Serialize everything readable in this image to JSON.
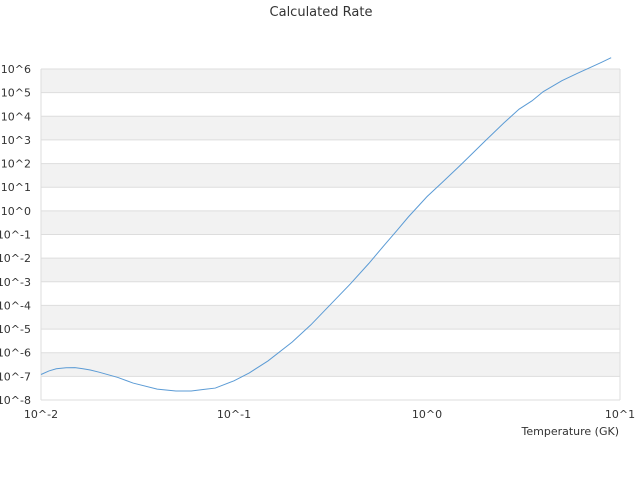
{
  "chart_data": {
    "type": "line",
    "title": "Calculated Rate",
    "xlabel": "Temperature (GK)",
    "ylabel": "",
    "x_scale": "log",
    "y_scale": "log",
    "xlim": [
      0.01,
      10
    ],
    "ylim": [
      1e-08,
      1000000.0
    ],
    "x_ticks": [
      "10^-2",
      "10^-1",
      "10^0",
      "10^1"
    ],
    "y_ticks": [
      "10^-8",
      "10^-7",
      "10^-6",
      "10^-5",
      "10^-4",
      "10^-3",
      "10^-2",
      "10^-1",
      "10^0",
      "10^1",
      "10^2",
      "10^3",
      "10^4",
      "10^5",
      "10^6"
    ],
    "grid": "alternating horizontal bands",
    "legend": "none",
    "series": [
      {
        "color": "#5b9bd5",
        "x": [
          0.01,
          0.011,
          0.012,
          0.0135,
          0.015,
          0.0165,
          0.018,
          0.02,
          0.025,
          0.03,
          0.04,
          0.05,
          0.06,
          0.07,
          0.08,
          0.1,
          0.12,
          0.15,
          0.2,
          0.25,
          0.3,
          0.4,
          0.5,
          0.6,
          0.7,
          0.8,
          1.0,
          1.2,
          1.5,
          2.0,
          2.5,
          3.0,
          3.5,
          4.0,
          5.0,
          6.0,
          7.0,
          8.0,
          9.0
        ],
        "y": [
          1.2e-07,
          1.7e-07,
          2.1e-07,
          2.3e-07,
          2.35e-07,
          2.1e-07,
          1.85e-07,
          1.5e-07,
          9e-08,
          5.2e-08,
          2.9e-08,
          2.4e-08,
          2.4e-08,
          2.8e-08,
          3.2e-08,
          6.5e-08,
          1.4e-07,
          4.5e-07,
          2.8e-06,
          1.5e-05,
          7e-05,
          0.0008,
          0.006,
          0.035,
          0.15,
          0.55,
          4.0,
          16,
          90,
          900,
          5200,
          20000.0,
          45000.0,
          110000.0,
          320000.0,
          650000.0,
          1150000.0,
          1900000.0,
          3000000.0
        ]
      }
    ]
  }
}
